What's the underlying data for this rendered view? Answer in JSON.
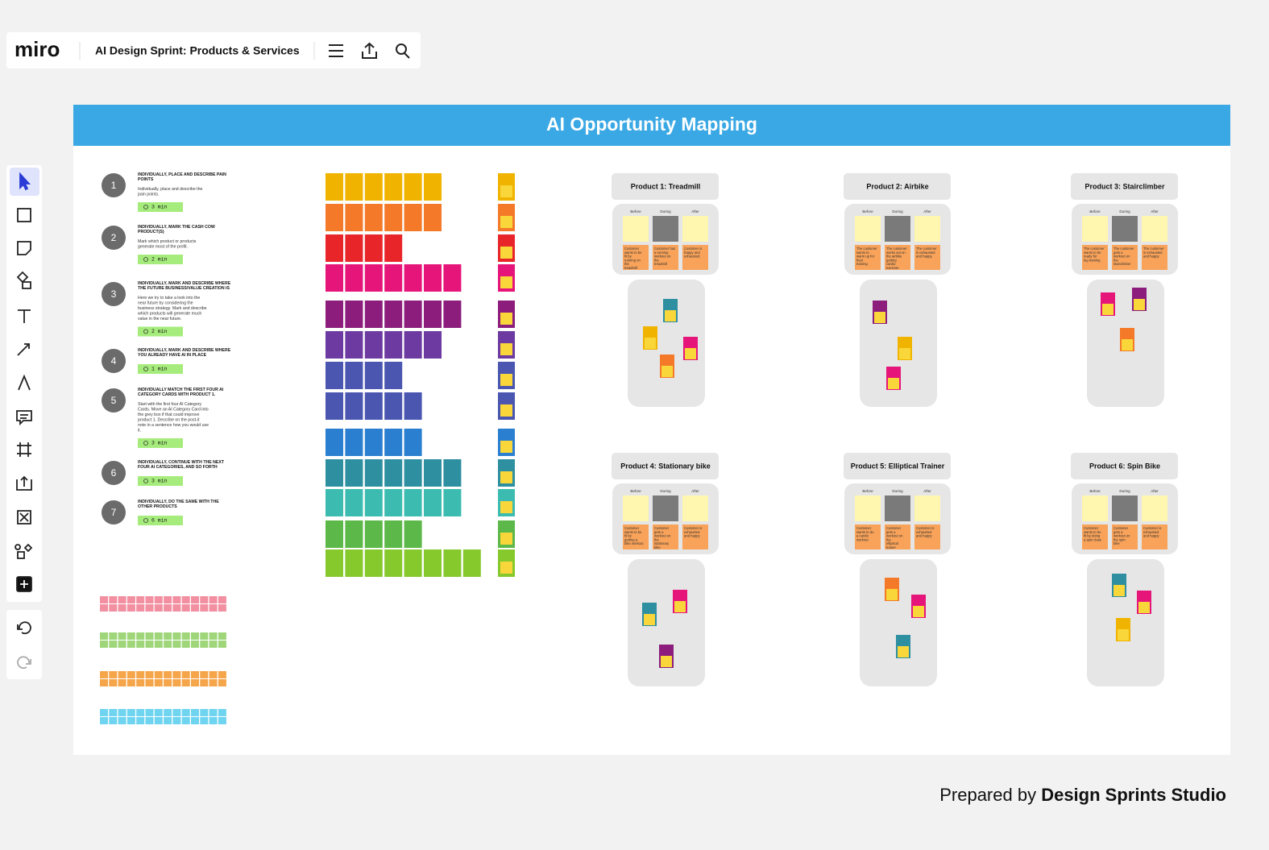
{
  "header": {
    "logo": "miro",
    "title": "AI Design Sprint: Products & Services"
  },
  "board": {
    "title": "AI Opportunity Mapping"
  },
  "steps": [
    {
      "number": "1",
      "title": "INDIVIDUALLY, PLACE AND DESCRIBE PAIN POINTS",
      "description": "Individually, place and describe the pain points.",
      "timer": "3 min"
    },
    {
      "number": "2",
      "title": "INDIVIDUALLY, MARK THE CASH COW PRODUCT(S)",
      "description": "Mark which product or products generate most of the profit.",
      "timer": "2 min"
    },
    {
      "number": "3",
      "title": "INDIVIDUALLY, MARK AND DESCRIBE WHERE THE FUTURE BUSINESS/VALUE CREATION IS",
      "description": "Here we try to take a look into the near future by considering the business strategy. Mark and describe which products will generate much value in the near future.",
      "timer": "2 min"
    },
    {
      "number": "4",
      "title": "INDIVIDUALLY, MARK AND DESCRIBE WHERE YOU ALREADY HAVE AI IN PLACE",
      "timer": "1 min"
    },
    {
      "number": "5",
      "title": "INDIVIDUALLY MATCH THE FIRST FOUR AI CATEGORY CARDS WITH PRODUCT 1.",
      "description": "Start with the first four AI Category Cards. Move an AI Category Card into the grey box if that could improve product 1. Describe on the post-it note in a sentence how you would use it.",
      "timer": "3 min"
    },
    {
      "number": "6",
      "title": "INDIVIDUALLY, CONTINUE WITH THE NEXT FOUR AI CATEGORIES, AND SO FORTH",
      "timer": "3 min"
    },
    {
      "number": "7",
      "title": "INDIVIDUALLY, DO THE SAME WITH THE OTHER PRODUCTS",
      "timer": "6 min"
    }
  ],
  "phases": [
    "Before",
    "During",
    "After"
  ],
  "products": [
    {
      "name": "Product 1: Treadmill",
      "notes": [
        "Customer wants to be fit by running on the treadmill",
        "Customer has a running workout on the treadmill",
        "Customer is happy and exhausted."
      ]
    },
    {
      "name": "Product 2: Airbike",
      "notes": [
        "The customer wants to warm up for their training",
        "The customer works out on the airbike getting cardio exercise",
        "The customer is exhausted and happy."
      ]
    },
    {
      "name": "Product 3: Stairclimber",
      "notes": [
        "The customer wants to be ready for leg training",
        "The customer gets a workout on the stairclimber",
        "The customer is exhausted and happy"
      ]
    },
    {
      "name": "Product 4: Stationary bike",
      "notes": [
        "Customer wants to be fit by getting a bike workout",
        "Customer gets a workout on the stationary bike",
        "Customer is exhausted and happy"
      ]
    },
    {
      "name": "Product 5: Elliptical Trainer",
      "notes": [
        "Customer wants to do a cardio workout",
        "Customer gets a workout on the elliptical trainer",
        "Customer is exhausted and happy"
      ]
    },
    {
      "name": "Product 6: Spin Bike",
      "notes": [
        "Customer wants to be fit by doing a spin class",
        "Customer gets a workout on the spin bike",
        "Customer is exhausted and happy"
      ]
    }
  ],
  "footer": {
    "prefix": "Prepared by",
    "brand": "Design Sprints Studio"
  }
}
